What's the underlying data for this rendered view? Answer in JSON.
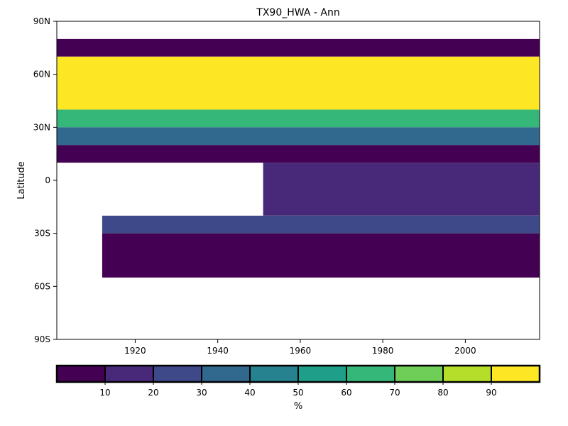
{
  "chart_data": {
    "type": "heatmap",
    "title": "TX90_HWA - Ann",
    "xlabel": "",
    "ylabel": "Latitude",
    "xlim": [
      1901,
      2018
    ],
    "ylim": [
      -90,
      90
    ],
    "x_ticks": [
      {
        "value": 1920,
        "label": "1920"
      },
      {
        "value": 1940,
        "label": "1940"
      },
      {
        "value": 1960,
        "label": "1960"
      },
      {
        "value": 1980,
        "label": "1980"
      },
      {
        "value": 2000,
        "label": "2000"
      }
    ],
    "y_ticks": [
      {
        "value": 90,
        "label": "90N"
      },
      {
        "value": 60,
        "label": "60N"
      },
      {
        "value": 30,
        "label": "30N"
      },
      {
        "value": 0,
        "label": "0"
      },
      {
        "value": -30,
        "label": "30S"
      },
      {
        "value": -60,
        "label": "60S"
      },
      {
        "value": -90,
        "label": "90S"
      }
    ],
    "colorbar": {
      "label": "%",
      "bounds": [
        0,
        10,
        20,
        30,
        40,
        50,
        60,
        70,
        80,
        90,
        100
      ],
      "tick_labels": [
        "10",
        "20",
        "30",
        "40",
        "50",
        "60",
        "70",
        "80",
        "90"
      ],
      "colors": [
        "#440154",
        "#482878",
        "#3e4989",
        "#31688e",
        "#26828e",
        "#1f9e89",
        "#35b779",
        "#6ece58",
        "#b5de2b",
        "#fde725"
      ]
    },
    "regions": [
      {
        "x": [
          1901,
          2018
        ],
        "y": [
          -90,
          90
        ],
        "value": null,
        "note": "missing data shown white"
      }
    ],
    "periods": [
      {
        "x": [
          1901,
          2018
        ],
        "lat": [
          80,
          70
        ],
        "value": 5
      },
      {
        "x": [
          1901,
          2018
        ],
        "lat": [
          70,
          40
        ],
        "value": 95
      },
      {
        "x": [
          1901,
          2018
        ],
        "lat": [
          40,
          30
        ],
        "value": 60
      },
      {
        "x": [
          1901,
          2018
        ],
        "lat": [
          30,
          20
        ],
        "value": 30
      },
      {
        "x": [
          1901,
          2018
        ],
        "lat": [
          20,
          10
        ],
        "value": 5
      },
      {
        "x": [
          1951,
          2018
        ],
        "lat": [
          10,
          -20
        ],
        "value": 12
      },
      {
        "x": [
          1912,
          2018
        ],
        "lat": [
          -20,
          -30
        ],
        "value": 28
      },
      {
        "x": [
          1912,
          2018
        ],
        "lat": [
          -30,
          -55
        ],
        "value": 5
      }
    ]
  }
}
